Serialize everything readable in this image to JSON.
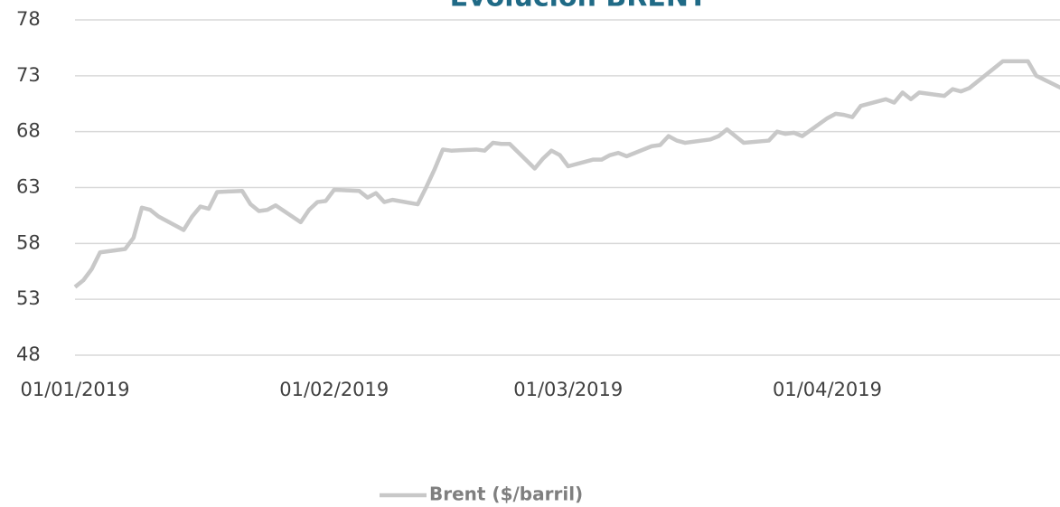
{
  "chart_data": {
    "type": "line",
    "title": "Evolución BRENT",
    "x": [
      "2019-01-01",
      "2019-01-02",
      "2019-01-03",
      "2019-01-04",
      "2019-01-07",
      "2019-01-08",
      "2019-01-09",
      "2019-01-10",
      "2019-01-11",
      "2019-01-14",
      "2019-01-15",
      "2019-01-16",
      "2019-01-17",
      "2019-01-18",
      "2019-01-21",
      "2019-01-22",
      "2019-01-23",
      "2019-01-24",
      "2019-01-25",
      "2019-01-28",
      "2019-01-29",
      "2019-01-30",
      "2019-01-31",
      "2019-02-01",
      "2019-02-04",
      "2019-02-05",
      "2019-02-06",
      "2019-02-07",
      "2019-02-08",
      "2019-02-11",
      "2019-02-12",
      "2019-02-13",
      "2019-02-14",
      "2019-02-15",
      "2019-02-18",
      "2019-02-19",
      "2019-02-20",
      "2019-02-21",
      "2019-02-22",
      "2019-02-25",
      "2019-02-26",
      "2019-02-27",
      "2019-02-28",
      "2019-03-01",
      "2019-03-04",
      "2019-03-05",
      "2019-03-06",
      "2019-03-07",
      "2019-03-08",
      "2019-03-11",
      "2019-03-12",
      "2019-03-13",
      "2019-03-14",
      "2019-03-15",
      "2019-03-18",
      "2019-03-19",
      "2019-03-20",
      "2019-03-21",
      "2019-03-22",
      "2019-03-25",
      "2019-03-26",
      "2019-03-27",
      "2019-03-28",
      "2019-03-29",
      "2019-04-01",
      "2019-04-02",
      "2019-04-03",
      "2019-04-04",
      "2019-04-05",
      "2019-04-08",
      "2019-04-09",
      "2019-04-10",
      "2019-04-11",
      "2019-04-12",
      "2019-04-15",
      "2019-04-16",
      "2019-04-17",
      "2019-04-18",
      "2019-04-22",
      "2019-04-23",
      "2019-04-24",
      "2019-04-25",
      "2019-04-26",
      "2019-04-29"
    ],
    "series": [
      {
        "name": "Brent ($/barril)",
        "color": "#c8c8c8",
        "values": [
          54.1,
          54.7,
          55.7,
          57.2,
          57.5,
          58.5,
          61.2,
          61.0,
          60.4,
          59.2,
          60.4,
          61.3,
          61.1,
          62.6,
          62.7,
          61.5,
          60.9,
          61.0,
          61.4,
          59.9,
          61.0,
          61.7,
          61.8,
          62.8,
          62.7,
          62.1,
          62.5,
          61.7,
          61.9,
          61.5,
          63.0,
          64.6,
          66.4,
          66.3,
          66.4,
          66.3,
          67.0,
          66.9,
          66.9,
          64.7,
          65.6,
          66.3,
          65.9,
          64.9,
          65.5,
          65.5,
          65.9,
          66.1,
          65.8,
          66.7,
          66.8,
          67.6,
          67.2,
          67.0,
          67.3,
          67.6,
          68.2,
          67.6,
          67.0,
          67.2,
          68.0,
          67.8,
          67.9,
          67.6,
          69.2,
          69.6,
          69.5,
          69.3,
          70.3,
          70.9,
          70.6,
          71.5,
          70.9,
          71.5,
          71.2,
          71.8,
          71.6,
          71.9,
          74.3,
          74.3,
          74.3,
          74.3,
          73.0,
          71.9
        ]
      }
    ],
    "xlim": [
      "2019-01-01",
      "2019-04-29"
    ],
    "xticks": [
      {
        "value": "2019-01-01",
        "label": "01/01/2019"
      },
      {
        "value": "2019-02-01",
        "label": "01/02/2019"
      },
      {
        "value": "2019-03-01",
        "label": "01/03/2019"
      },
      {
        "value": "2019-04-01",
        "label": "01/04/2019"
      }
    ],
    "ylim": [
      48,
      78
    ],
    "yticks": [
      48,
      53,
      58,
      63,
      68,
      73,
      78
    ],
    "grid": true,
    "legend": "bottom"
  }
}
